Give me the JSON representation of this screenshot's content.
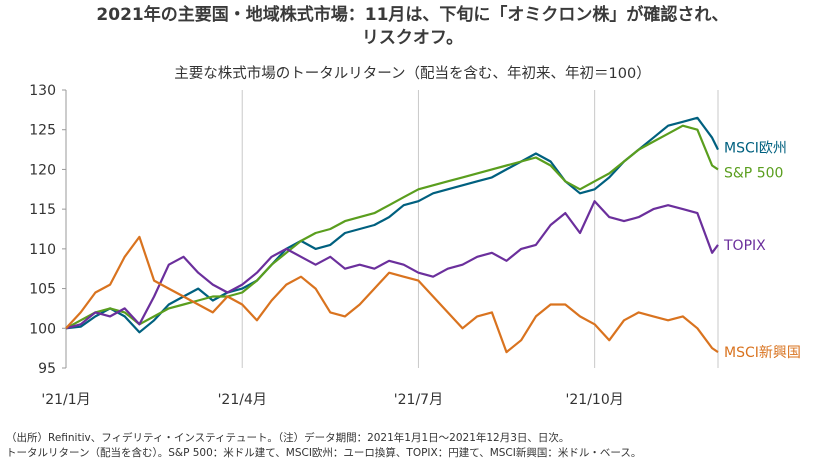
{
  "chart_data": {
    "type": "line",
    "title": "2021年の主要国・地域株式市場：11月は、下旬に「オミクロン株」が確認され、",
    "title_line2": "リスクオフ。",
    "subtitle": "主要な株式市場のトータルリターン（配当を含む、年初来、年初＝100）",
    "xlabel": "",
    "ylabel": "",
    "ylim": [
      95,
      130
    ],
    "yticks": [
      95,
      100,
      105,
      110,
      115,
      120,
      125,
      130
    ],
    "xlim": [
      0,
      11.1
    ],
    "xticks": [
      {
        "pos": 0,
        "label": "'21/1月"
      },
      {
        "pos": 3,
        "label": "'21/4月"
      },
      {
        "pos": 6,
        "label": "'21/7月"
      },
      {
        "pos": 9,
        "label": "'21/10月"
      }
    ],
    "grid": "vertical",
    "legend": "right (end-of-line labels)",
    "x": [
      0,
      0.25,
      0.5,
      0.75,
      1,
      1.25,
      1.5,
      1.75,
      2,
      2.25,
      2.5,
      2.75,
      3,
      3.25,
      3.5,
      3.75,
      4,
      4.25,
      4.5,
      4.75,
      5,
      5.25,
      5.5,
      5.75,
      6,
      6.25,
      6.5,
      6.75,
      7,
      7.25,
      7.5,
      7.75,
      8,
      8.25,
      8.5,
      8.75,
      9,
      9.25,
      9.5,
      9.75,
      10,
      10.25,
      10.5,
      10.75,
      11,
      11.1
    ],
    "series": [
      {
        "name": "MSCI欧州",
        "color": "#00607f",
        "values": [
          100,
          100.2,
          101.5,
          102.5,
          101.5,
          99.5,
          101,
          103,
          104,
          105,
          103.5,
          104.5,
          105,
          106,
          108,
          110,
          111,
          110,
          110.5,
          112,
          112.5,
          113,
          114,
          115.5,
          116,
          117,
          117.5,
          118,
          118.5,
          119,
          120,
          121,
          122,
          121,
          118.5,
          117,
          117.5,
          119,
          121,
          122.5,
          124,
          125.5,
          126,
          126.5,
          124,
          122.5
        ]
      },
      {
        "name": "S&P 500",
        "color": "#5a9e1e",
        "values": [
          100,
          101,
          102,
          102.5,
          102,
          100.5,
          101.5,
          102.5,
          103,
          103.5,
          104,
          104,
          104.5,
          106,
          108,
          109.5,
          111,
          112,
          112.5,
          113.5,
          114,
          114.5,
          115.5,
          116.5,
          117.5,
          118,
          118.5,
          119,
          119.5,
          120,
          120.5,
          121,
          121.5,
          120.5,
          118.5,
          117.5,
          118.5,
          119.5,
          121,
          122.5,
          123.5,
          124.5,
          125.5,
          125,
          120.5,
          120
        ]
      },
      {
        "name": "TOPIX",
        "color": "#6b2f9c",
        "values": [
          100,
          100.5,
          102,
          101.5,
          102.5,
          100.5,
          104,
          108,
          109,
          107,
          105.5,
          104.5,
          105.5,
          107,
          109,
          110,
          109,
          108,
          109,
          107.5,
          108,
          107.5,
          108.5,
          108,
          107,
          106.5,
          107.5,
          108,
          109,
          109.5,
          108.5,
          110,
          110.5,
          113,
          114.5,
          112,
          116,
          114,
          113.5,
          114,
          115,
          115.5,
          115,
          114.5,
          109.5,
          110.5
        ]
      },
      {
        "name": "MSCI新興国",
        "color": "#d9731f",
        "values": [
          100,
          102,
          104.5,
          105.5,
          109,
          111.5,
          106,
          105,
          104,
          103,
          102,
          104,
          103,
          101,
          103.5,
          105.5,
          106.5,
          105,
          102,
          101.5,
          103,
          105,
          107,
          106.5,
          106,
          104,
          102,
          100,
          101.5,
          102,
          97,
          98.5,
          101.5,
          103,
          103,
          101.5,
          100.5,
          98.5,
          101,
          102,
          101.5,
          101,
          101.5,
          100,
          97.5,
          97
        ]
      }
    ]
  },
  "notes": {
    "line1": "（出所）Refinitiv、フィデリティ・インスティテュート。（注）データ期間：2021年1月1日〜2021年12月3日、日次。",
    "line2": "トータルリターン（配当を含む）。S&P 500：米ドル建て、MSCI欧州：ユーロ換算、TOPIX：円建て、MSCI新興国：米ドル・ベース。"
  }
}
